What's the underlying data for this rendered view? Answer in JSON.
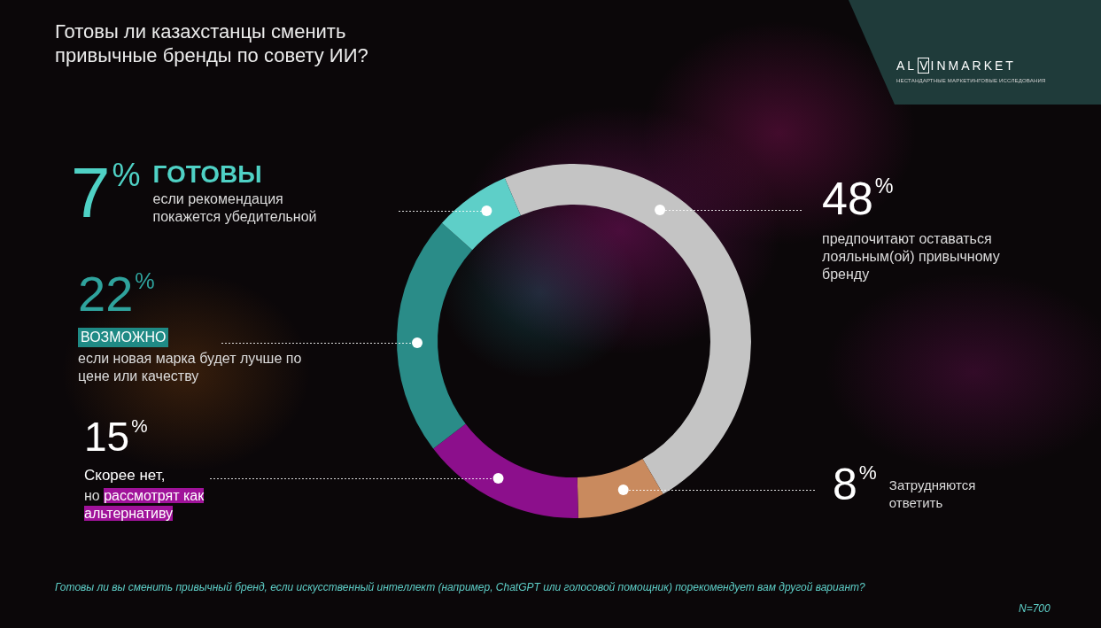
{
  "chart_data": {
    "type": "doughnut",
    "title": "Готовы ли казахстанцы сменить привычные бренды по совету ИИ?",
    "categories": [
      "предпочитают оставаться лояльным(ой) привычному бренду",
      "Затрудняются ответить",
      "Скорее нет,",
      "ВОЗМОЖНО",
      "ГОТОВЫ"
    ],
    "values": [
      48,
      8,
      15,
      22,
      7
    ],
    "value_labels": [
      "48%",
      "8%",
      "15%",
      "22%",
      "7%"
    ],
    "colors": [
      "#c4c4c4",
      "#c98a5e",
      "#8c0f8c",
      "#2a8c88",
      "#5ecfc8"
    ],
    "data_labels": true,
    "annotations": [
      {
        "category": "Скорее нет,",
        "text": "но рассмотрят как альтернативу"
      },
      {
        "category": "ВОЗМОЖНО",
        "text": "если новая марка будет лучше по цене или качеству"
      },
      {
        "category": "ГОТОВЫ",
        "text": "если рекомендация покажется убедительной"
      }
    ],
    "question": "Готовы ли вы сменить привычный бренд, если искусственный интеллект (например, ChatGPT или голосовой помощник) порекомендует вам другой вариант?",
    "sample": "N=700",
    "brand": "ALVINMARKET",
    "brand_tagline": "НЕСТАНДАРТНЫЕ МАРКЕТИНГОВЫЕ ИССЛЕДОВАНИЯ"
  }
}
